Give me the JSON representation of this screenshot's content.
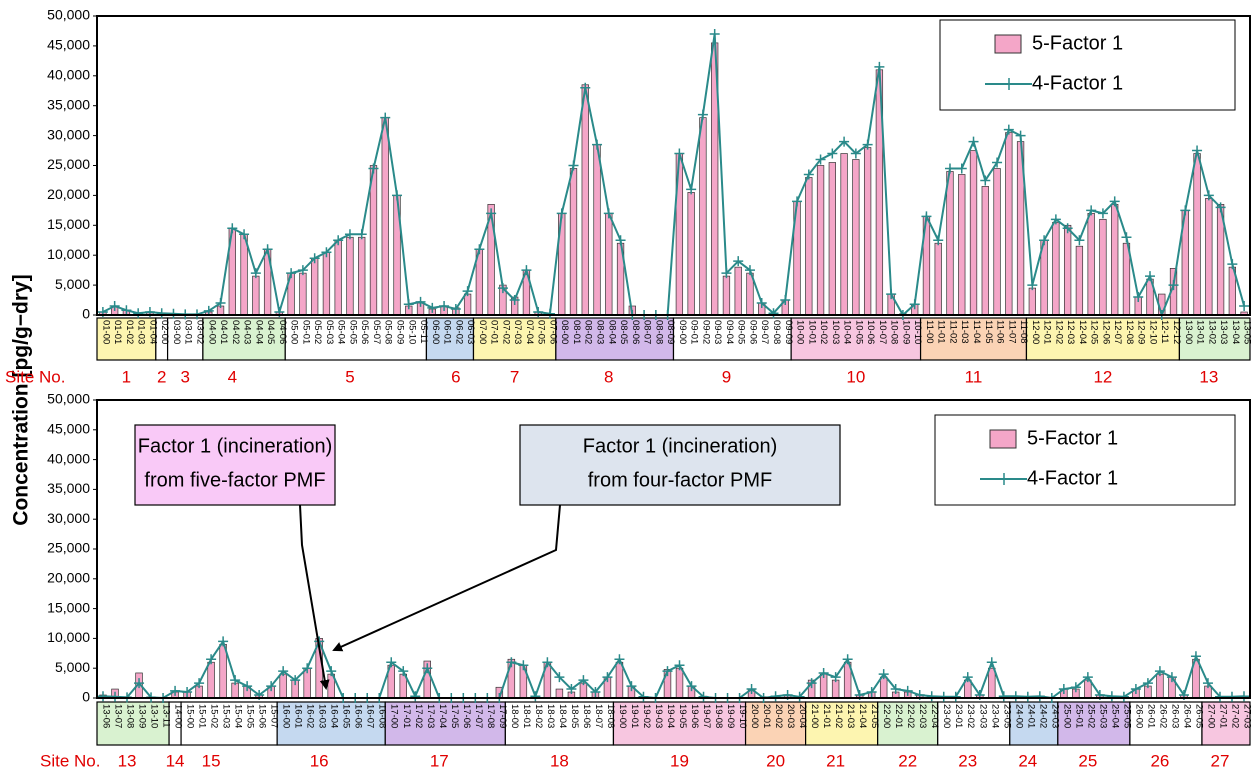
{
  "chart_data": [
    {
      "type": "bar-line",
      "ylabel": "Concentration [pg/g−dry]",
      "site_title": "Site No.",
      "legend": "upper right",
      "ylim": [
        0,
        50000
      ],
      "yticks": [
        0,
        {
          "value": 5000,
          "label": "5,000"
        },
        {
          "value": 10000,
          "label": "10,000"
        },
        {
          "value": 15000,
          "label": "15,000"
        },
        {
          "value": 20000,
          "label": "20,000"
        },
        {
          "value": 25000,
          "label": "25,000"
        },
        {
          "value": 30000,
          "label": "30,000"
        },
        {
          "value": 35000,
          "label": "35,000"
        },
        {
          "value": 40000,
          "label": "40,000"
        },
        {
          "value": 45000,
          "label": "45,000"
        },
        {
          "value": 50000,
          "label": "50,000"
        }
      ],
      "band_colors": [
        "#fdf5b0",
        "#ffffff",
        "#ffffff",
        "#d9f2d0",
        "#ffffff",
        "#c5d9f0",
        "#fdf5b0",
        "#d2b8ea",
        "#ffffff",
        "#f7c6e0",
        "#fbd3b5",
        "#fdf5b0",
        "#d9f2d0"
      ],
      "categories": [
        "01-00",
        "01-01",
        "01-02",
        "01-03",
        "01-04",
        "02-00",
        "03-00",
        "03-01",
        "03-02",
        "04-00",
        "04-01",
        "04-02",
        "04-03",
        "04-04",
        "04-05",
        "04-06",
        "05-00",
        "05-01",
        "05-02",
        "05-03",
        "05-04",
        "05-05",
        "05-06",
        "05-07",
        "05-08",
        "05-09",
        "05-10",
        "05-11",
        "06-00",
        "06-01",
        "06-02",
        "06-03",
        "07-00",
        "07-01",
        "07-02",
        "07-03",
        "07-04",
        "07-05",
        "07-06",
        "08-00",
        "08-01",
        "08-02",
        "08-03",
        "08-04",
        "08-05",
        "08-06",
        "08-07",
        "08-08",
        "08-09",
        "09-00",
        "09-01",
        "09-02",
        "09-03",
        "09-04",
        "09-05",
        "09-06",
        "09-07",
        "09-08",
        "09-09",
        "10-00",
        "10-01",
        "10-02",
        "10-03",
        "10-04",
        "10-05",
        "10-06",
        "10-07",
        "10-08",
        "10-09",
        "10-10",
        "11-00",
        "11-01",
        "11-02",
        "11-03",
        "11-04",
        "11-05",
        "11-06",
        "11-07",
        "11-08",
        "12-00",
        "12-01",
        "12-02",
        "12-03",
        "12-04",
        "12-05",
        "12-06",
        "12-07",
        "12-08",
        "12-09",
        "12-10",
        "12-11",
        "12-12",
        "13-00",
        "13-01",
        "13-02",
        "13-03",
        "13-04",
        "13-05"
      ],
      "site_labels": [
        null,
        null,
        "1",
        null,
        null,
        "2",
        null,
        "3",
        null,
        null,
        null,
        "4",
        null,
        null,
        null,
        null,
        null,
        null,
        null,
        null,
        null,
        "5",
        null,
        null,
        null,
        null,
        null,
        null,
        null,
        null,
        "6",
        null,
        null,
        null,
        null,
        "7",
        null,
        null,
        null,
        null,
        null,
        null,
        null,
        "8",
        null,
        null,
        null,
        null,
        null,
        null,
        null,
        null,
        null,
        "9",
        null,
        null,
        null,
        null,
        null,
        null,
        null,
        null,
        null,
        null,
        "10",
        null,
        null,
        null,
        null,
        null,
        null,
        null,
        null,
        null,
        "11",
        null,
        null,
        null,
        null,
        null,
        null,
        null,
        null,
        null,
        null,
        "12",
        null,
        null,
        null,
        null,
        null,
        null,
        null,
        null,
        "13",
        null,
        null,
        null
      ],
      "series": [
        {
          "name": "5-Factor 1",
          "kind": "bar",
          "color": "#f4a6c8",
          "values": [
            500,
            1500,
            800,
            300,
            500,
            300,
            200,
            100,
            100,
            500,
            1500,
            14500,
            13500,
            6500,
            11000,
            500,
            7000,
            7000,
            9500,
            10500,
            12500,
            13000,
            13000,
            25000,
            33000,
            20000,
            1500,
            2000,
            1000,
            1500,
            1200,
            3500,
            11000,
            18500,
            5000,
            3000,
            7500,
            500,
            200,
            17000,
            24500,
            38500,
            28500,
            17000,
            12000,
            1500,
            0,
            0,
            0,
            27000,
            20500,
            33000,
            45500,
            6500,
            8000,
            7000,
            2000,
            300,
            2500,
            19000,
            23000,
            25000,
            25500,
            27000,
            26000,
            28000,
            41000,
            3500,
            200,
            1800,
            16500,
            12000,
            24000,
            23500,
            27500,
            21500,
            24500,
            30500,
            29000,
            4500,
            12500,
            15500,
            15000,
            11500,
            17000,
            16000,
            18500,
            12000,
            3000,
            6000,
            3500,
            7800,
            17500,
            27000,
            19500,
            18500,
            8000,
            500
          ]
        },
        {
          "name": "4-Factor 1",
          "kind": "line",
          "color": "#2a8a8a",
          "values": [
            500,
            1500,
            800,
            300,
            500,
            300,
            200,
            100,
            100,
            700,
            2000,
            14500,
            13500,
            7000,
            11000,
            500,
            7000,
            7500,
            9500,
            10500,
            12500,
            13500,
            13500,
            24500,
            33000,
            20000,
            1800,
            2200,
            1200,
            1500,
            1000,
            4000,
            11000,
            17000,
            4500,
            2500,
            7500,
            500,
            200,
            17000,
            25000,
            38000,
            28500,
            17000,
            12500,
            0,
            0,
            0,
            0,
            27000,
            21000,
            33500,
            47000,
            7000,
            9000,
            7500,
            2000,
            300,
            2500,
            19000,
            23500,
            26000,
            27000,
            29000,
            27000,
            28500,
            41500,
            3500,
            0,
            1800,
            16500,
            12500,
            24500,
            24500,
            29000,
            22500,
            25500,
            31000,
            30000,
            5000,
            12500,
            16000,
            14500,
            12500,
            17500,
            17000,
            19000,
            13000,
            3000,
            6500,
            0,
            5000,
            17500,
            27500,
            20000,
            18000,
            8500,
            1500
          ]
        }
      ]
    },
    {
      "type": "bar-line",
      "site_title": "Site No.",
      "legend": "upper right",
      "ylim": [
        0,
        50000
      ],
      "yticks": [
        0,
        {
          "value": 5000,
          "label": "5,000"
        },
        {
          "value": 10000,
          "label": "10,000"
        },
        {
          "value": 15000,
          "label": "15,000"
        },
        {
          "value": 20000,
          "label": "20,000"
        },
        {
          "value": 25000,
          "label": "25,000"
        },
        {
          "value": 30000,
          "label": "30,000"
        },
        {
          "value": 35000,
          "label": "35,000"
        },
        {
          "value": 40000,
          "label": "40,000"
        },
        {
          "value": 45000,
          "label": "45,000"
        },
        {
          "value": 50000,
          "label": "50,000"
        }
      ],
      "band_colors": [
        "#d9f2d0",
        "#ffffff",
        "#ffffff",
        "#c5d9f0",
        "#d2b8ea",
        "#ffffff",
        "#f7c6e0",
        "#fbd3b5",
        "#fdf5b0",
        "#d9f2d0",
        "#ffffff",
        "#c5d9f0",
        "#d2b8ea",
        "#ffffff",
        "#f7c6e0"
      ],
      "annotations": [
        {
          "lines": [
            "Factor 1 (incineration)",
            "from five-factor PMF"
          ],
          "color": "#f9c9f7"
        },
        {
          "lines": [
            "Factor 1 (incineration)",
            "from four-factor PMF"
          ],
          "color": "#dde4ee"
        }
      ],
      "categories": [
        "13-06",
        "13-07",
        "13-08",
        "13-09",
        "13-10",
        "13-11",
        "14-00",
        "15-00",
        "15-01",
        "15-02",
        "15-03",
        "15-04",
        "15-05",
        "15-06",
        "15-07",
        "16-00",
        "16-01",
        "16-02",
        "16-03",
        "16-04",
        "16-05",
        "16-06",
        "16-07",
        "16-08",
        "17-00",
        "17-01",
        "17-02",
        "17-03",
        "17-04",
        "17-05",
        "17-06",
        "17-07",
        "17-08",
        "17-09",
        "18-00",
        "18-01",
        "18-02",
        "18-03",
        "18-04",
        "18-05",
        "18-06",
        "18-07",
        "18-08",
        "19-00",
        "19-01",
        "19-02",
        "19-03",
        "19-04",
        "19-05",
        "19-06",
        "19-07",
        "19-08",
        "19-09",
        "19-10",
        "20-00",
        "20-01",
        "20-02",
        "20-03",
        "20-04",
        "21-00",
        "21-01",
        "21-02",
        "21-03",
        "21-04",
        "21-05",
        "22-00",
        "22-01",
        "22-02",
        "22-03",
        "22-04",
        "23-00",
        "23-01",
        "23-02",
        "23-03",
        "23-04",
        "23-05",
        "24-00",
        "24-01",
        "24-02",
        "24-03",
        "25-00",
        "25-01",
        "25-02",
        "25-03",
        "25-04",
        "25-05",
        "26-00",
        "26-01",
        "26-02",
        "26-03",
        "26-04",
        "26-05",
        "27-00",
        "27-01",
        "27-02",
        "27-03"
      ],
      "site_labels": [
        null,
        null,
        "13",
        null,
        null,
        null,
        "14",
        null,
        null,
        "15",
        null,
        null,
        null,
        null,
        null,
        null,
        null,
        null,
        "16",
        null,
        null,
        null,
        null,
        null,
        null,
        null,
        null,
        null,
        "17",
        null,
        null,
        null,
        null,
        null,
        null,
        null,
        null,
        null,
        "18",
        null,
        null,
        null,
        null,
        null,
        null,
        null,
        null,
        null,
        "19",
        null,
        null,
        null,
        null,
        null,
        null,
        null,
        "20",
        null,
        null,
        null,
        null,
        "21",
        null,
        null,
        null,
        null,
        null,
        "22",
        null,
        null,
        null,
        null,
        "23",
        null,
        null,
        null,
        null,
        "24",
        null,
        null,
        null,
        null,
        "25",
        null,
        null,
        null,
        null,
        null,
        "26",
        null,
        null,
        null,
        null,
        "27",
        null,
        null
      ],
      "series": [
        {
          "name": "5-Factor 1",
          "kind": "bar",
          "color": "#f4a6c8",
          "values": [
            500,
            1500,
            200,
            4200,
            200,
            100,
            1000,
            1000,
            2000,
            6000,
            9000,
            2500,
            2000,
            500,
            2000,
            4000,
            3000,
            5000,
            10000,
            4000,
            0,
            0,
            0,
            0,
            5500,
            4000,
            300,
            6200,
            0,
            0,
            0,
            0,
            0,
            1800,
            6500,
            5500,
            300,
            6000,
            1500,
            1000,
            2500,
            1000,
            3500,
            6000,
            2000,
            200,
            0,
            4800,
            5000,
            2000,
            300,
            0,
            0,
            0,
            1500,
            200,
            300,
            500,
            200,
            3000,
            4000,
            3000,
            6000,
            500,
            1000,
            3500,
            1000,
            1000,
            500,
            300,
            200,
            200,
            3000,
            500,
            5000,
            300,
            300,
            200,
            300,
            0,
            1500,
            1500,
            3000,
            500,
            300,
            200,
            1500,
            2000,
            4000,
            3500,
            500,
            6500,
            2000,
            200,
            200,
            300
          ]
        },
        {
          "name": "4-Factor 1",
          "kind": "line",
          "color": "#2a8a8a",
          "values": [
            300,
            200,
            100,
            2500,
            100,
            0,
            1200,
            1000,
            2500,
            6500,
            9500,
            3000,
            2000,
            500,
            2000,
            4500,
            3000,
            5000,
            9500,
            4500,
            0,
            0,
            0,
            0,
            6000,
            4500,
            300,
            5000,
            0,
            0,
            0,
            0,
            0,
            0,
            6000,
            5500,
            300,
            6000,
            3500,
            1500,
            3000,
            1000,
            3500,
            6500,
            2000,
            200,
            0,
            4500,
            5500,
            2000,
            200,
            0,
            0,
            0,
            1500,
            0,
            300,
            500,
            200,
            2500,
            4200,
            3500,
            6500,
            500,
            1000,
            4000,
            1500,
            1200,
            500,
            300,
            200,
            200,
            3500,
            500,
            6000,
            300,
            300,
            200,
            300,
            0,
            1500,
            1800,
            3500,
            500,
            300,
            200,
            1500,
            2500,
            4500,
            3500,
            500,
            7000,
            2500,
            200,
            200,
            300
          ]
        }
      ]
    }
  ]
}
